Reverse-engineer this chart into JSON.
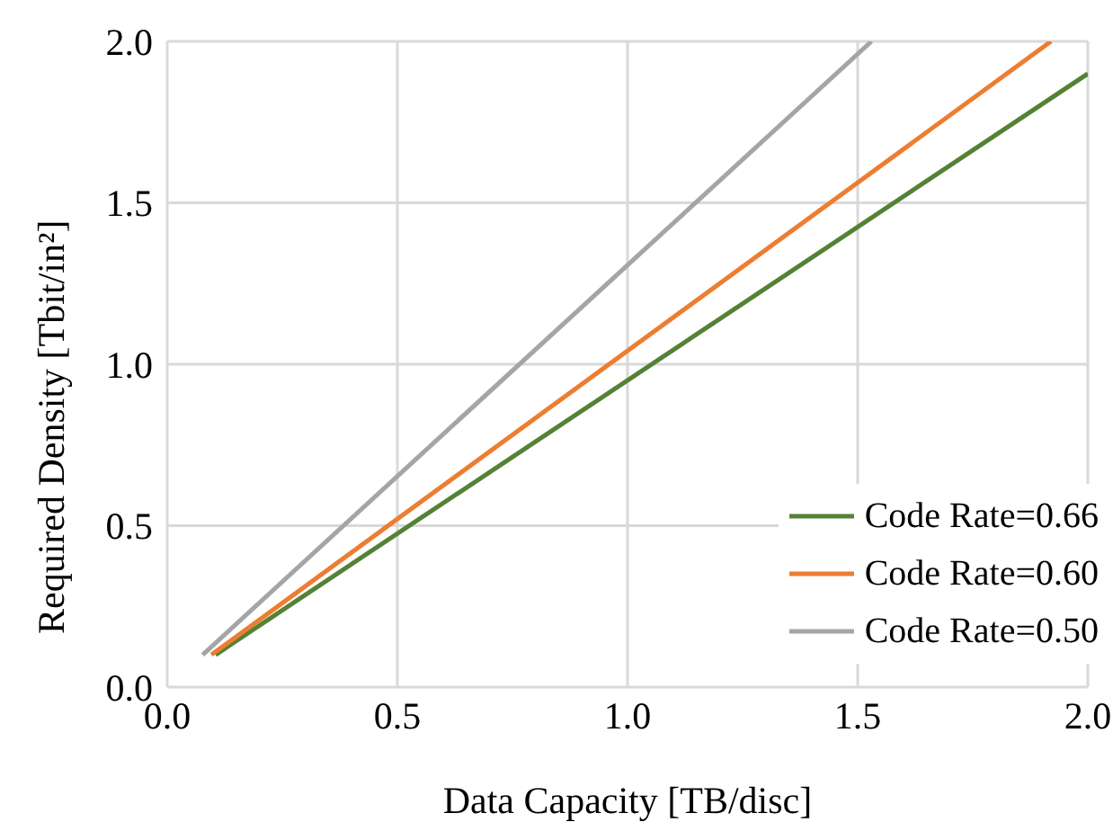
{
  "chart_data": {
    "type": "line",
    "xlabel": "Data Capacity [TB/disc]",
    "ylabel": "Required Density [Tbit/in²]",
    "series": [
      {
        "name": "Code Rate=0.66",
        "color": "#548235",
        "x": [
          0.105,
          2.0
        ],
        "values": [
          0.1,
          1.9
        ]
      },
      {
        "name": "Code Rate=0.60",
        "color": "#ed7d31",
        "x": [
          0.096,
          1.92
        ],
        "values": [
          0.1,
          2.0
        ]
      },
      {
        "name": "Code Rate=0.50",
        "color": "#a5a5a5",
        "x": [
          0.077,
          1.53
        ],
        "values": [
          0.1,
          2.0
        ]
      }
    ],
    "xlim": [
      0,
      2.0
    ],
    "xticks": [
      {
        "value": 0,
        "label": "0.0"
      },
      {
        "value": 0.5,
        "label": "0.5"
      },
      {
        "value": 1,
        "label": "1.0"
      },
      {
        "value": 1.5,
        "label": "1.5"
      },
      {
        "value": 2,
        "label": "2.0"
      }
    ],
    "ylim": [
      0,
      2.0
    ],
    "yticks": [
      {
        "value": 0,
        "label": "0.0"
      },
      {
        "value": 0.5,
        "label": "0.5"
      },
      {
        "value": 1,
        "label": "1.0"
      },
      {
        "value": 1.5,
        "label": "1.5"
      },
      {
        "value": 2,
        "label": "2.0"
      }
    ],
    "grid": true,
    "legend": "bottom right",
    "marker": "none",
    "line_style": "solid"
  }
}
